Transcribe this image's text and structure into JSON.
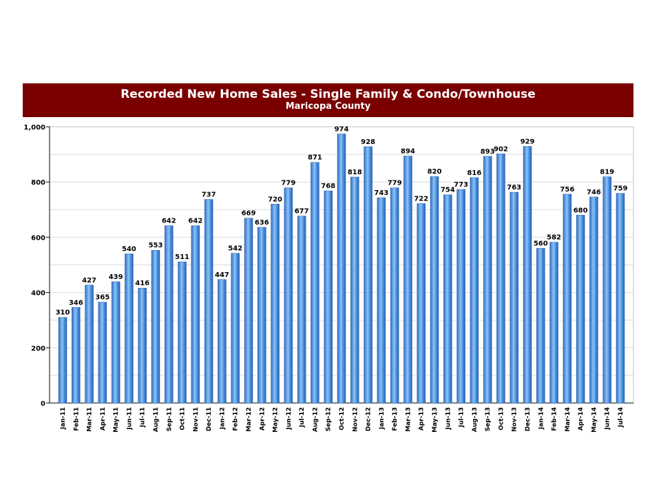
{
  "chart_data": {
    "type": "bar",
    "title": "Recorded New Home Sales - Single Family & Condo/Townhouse",
    "subtitle": "Maricopa County",
    "categories": [
      "Jan-11",
      "Feb-11",
      "Mar-11",
      "Apr-11",
      "May-11",
      "Jun-11",
      "Jul-11",
      "Aug-11",
      "Sep-11",
      "Oct-11",
      "Nov-11",
      "Dec-11",
      "Jan-12",
      "Feb-12",
      "Mar-12",
      "Apr-12",
      "May-12",
      "Jun-12",
      "Jul-12",
      "Aug-12",
      "Sep-12",
      "Oct-12",
      "Nov-12",
      "Dec-12",
      "Jan-13",
      "Feb-13",
      "Mar-13",
      "Apr-13",
      "May-13",
      "Jun-13",
      "Jul-13",
      "Aug-13",
      "Sep-13",
      "Oct-13",
      "Nov-13",
      "Dec-13",
      "Jan-14",
      "Feb-14",
      "Mar-14",
      "Apr-14",
      "May-14",
      "Jun-14",
      "Jul-14"
    ],
    "values": [
      310,
      346,
      427,
      365,
      439,
      540,
      416,
      553,
      642,
      511,
      642,
      737,
      447,
      542,
      669,
      636,
      720,
      779,
      677,
      871,
      768,
      974,
      818,
      928,
      743,
      779,
      894,
      722,
      820,
      754,
      773,
      816,
      893,
      902,
      763,
      929,
      560,
      582,
      756,
      680,
      746,
      819,
      759
    ],
    "ylim": [
      0,
      1000
    ],
    "yticks": [
      0,
      200,
      400,
      600,
      800,
      1000
    ],
    "ytick_labels": [
      "0",
      "200",
      "400",
      "600",
      "800",
      "1,000"
    ],
    "grid": true,
    "data_labels": true,
    "xlabel": "",
    "ylabel": "",
    "colors": {
      "bar": "#4a90e2",
      "title_band": "#7a0000",
      "grid": "#d9d9d9"
    }
  }
}
